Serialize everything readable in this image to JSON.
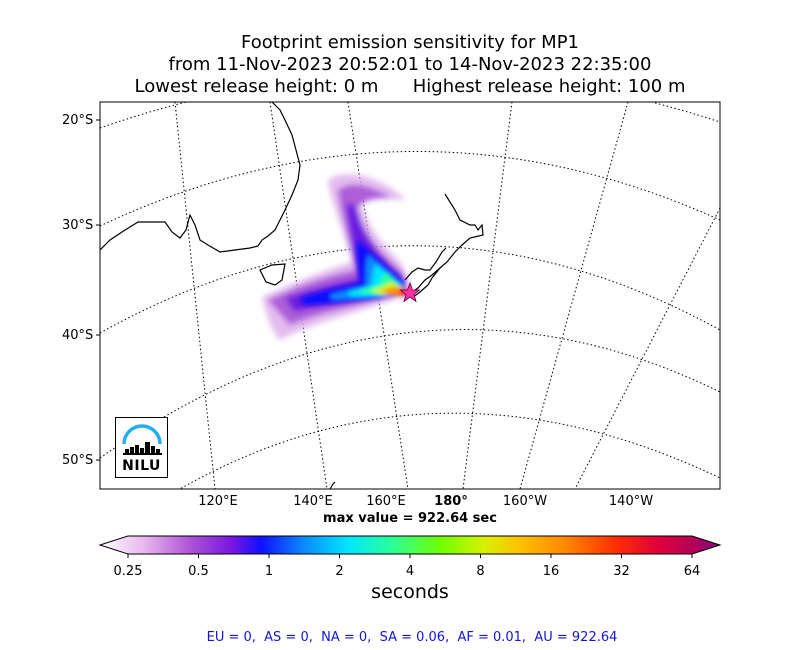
{
  "title": {
    "line1": "Footprint emission sensitivity for MP1",
    "line2": "from 11-Nov-2023 20:52:01 to 14-Nov-2023 22:35:00",
    "line3": "Lowest release height: 0 m      Highest release height: 100 m"
  },
  "map": {
    "lat_labels": [
      "20°S",
      "30°S",
      "40°S",
      "50°S"
    ],
    "lon_labels": [
      "120°E",
      "140°E",
      "160°E",
      "180°",
      "160°W",
      "140°W"
    ],
    "release_point_icon": "star-marker",
    "max_value_text": "max value = 922.64 sec"
  },
  "colorbar": {
    "ticks": [
      "0.25",
      "0.5",
      "1",
      "2",
      "4",
      "8",
      "16",
      "32",
      "64"
    ],
    "label": "seconds",
    "colors": [
      "#ffffff",
      "#e9b8ee",
      "#b25ad6",
      "#7d18e0",
      "#1010ff",
      "#0a8cff",
      "#00e6ff",
      "#2aff9a",
      "#70ff00",
      "#d9f000",
      "#ffbe00",
      "#ff8800",
      "#ff3000",
      "#e0003a",
      "#b3005a",
      "#7a0d82"
    ]
  },
  "logo": {
    "text": "NILU",
    "color": "#22aef0"
  },
  "footer": "EU = 0,  AS = 0,  NA = 0,  SA = 0.06,  AF = 0.01,  AU = 922.64"
}
